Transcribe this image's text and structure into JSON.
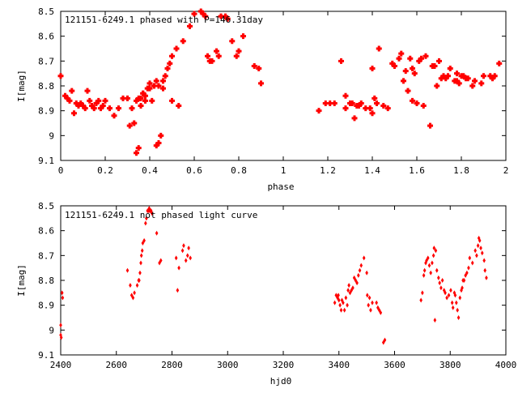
{
  "chart_data": [
    {
      "type": "scatter",
      "title": "121151-6249.1 phased with P=146.31day",
      "xlabel": "phase",
      "ylabel": "I[mag]",
      "xlim": [
        0,
        2
      ],
      "ylim": [
        8.5,
        9.1
      ],
      "y_inverted": true,
      "x_ticks": [
        "0",
        "0.2",
        "0.4",
        "0.6",
        "0.8",
        "1",
        "1.2",
        "1.4",
        "1.6",
        "1.8",
        "2"
      ],
      "y_ticks": [
        "8.5",
        "8.6",
        "8.7",
        "8.8",
        "8.9",
        "9",
        "9.1"
      ],
      "marker": "filled-cross",
      "color": "#ff0000",
      "series": [
        {
          "x": [
            0.0,
            0.02,
            0.03,
            0.04,
            0.05,
            0.06,
            0.07,
            0.08,
            0.09,
            0.1,
            0.11,
            0.12,
            0.13,
            0.14,
            0.15,
            0.16,
            0.17,
            0.18,
            0.19,
            0.2,
            0.22,
            0.24,
            0.26,
            0.28,
            0.3,
            0.31,
            0.32,
            0.33,
            0.34,
            0.34,
            0.35,
            0.35,
            0.36,
            0.36,
            0.37,
            0.37,
            0.38,
            0.38,
            0.39,
            0.4,
            0.4,
            0.41,
            0.42,
            0.43,
            0.43,
            0.44,
            0.44,
            0.45,
            0.46,
            0.46,
            0.47,
            0.48,
            0.49,
            0.5,
            0.5,
            0.52,
            0.53,
            0.55,
            0.58,
            0.6,
            0.63,
            0.64,
            0.65,
            0.66,
            0.67,
            0.68,
            0.7,
            0.71,
            0.72,
            0.74,
            0.75,
            0.77,
            0.79,
            0.8,
            0.82,
            0.87,
            0.89,
            0.9,
            1.16,
            1.19,
            1.21,
            1.23,
            1.26,
            1.28,
            1.28,
            1.3,
            1.31,
            1.32,
            1.33,
            1.34,
            1.35,
            1.37,
            1.39,
            1.4,
            1.4,
            1.41,
            1.42,
            1.43,
            1.45,
            1.47,
            1.49,
            1.5,
            1.52,
            1.53,
            1.54,
            1.55,
            1.56,
            1.57,
            1.58,
            1.58,
            1.59,
            1.6,
            1.61,
            1.62,
            1.63,
            1.64,
            1.66,
            1.67,
            1.68,
            1.69,
            1.7,
            1.71,
            1.72,
            1.73,
            1.74,
            1.75,
            1.77,
            1.78,
            1.78,
            1.79,
            1.8,
            1.81,
            1.82,
            1.83,
            1.85,
            1.86,
            1.89,
            1.9,
            1.93,
            1.94,
            1.95,
            1.97
          ],
          "y": [
            8.76,
            8.84,
            8.85,
            8.86,
            8.82,
            8.91,
            8.87,
            8.88,
            8.87,
            8.88,
            8.89,
            8.82,
            8.86,
            8.88,
            8.89,
            8.87,
            8.86,
            8.89,
            8.88,
            8.86,
            8.89,
            8.92,
            8.89,
            8.85,
            8.85,
            8.96,
            8.89,
            8.95,
            9.07,
            8.86,
            8.85,
            9.05,
            8.88,
            8.85,
            8.83,
            8.83,
            8.86,
            8.84,
            8.81,
            8.81,
            8.79,
            8.86,
            8.8,
            9.04,
            8.78,
            9.03,
            8.8,
            9.0,
            8.81,
            8.78,
            8.76,
            8.73,
            8.71,
            8.68,
            8.86,
            8.65,
            8.88,
            8.62,
            8.56,
            8.51,
            8.5,
            8.51,
            8.52,
            8.68,
            8.7,
            8.7,
            8.66,
            8.68,
            8.52,
            8.52,
            8.53,
            8.62,
            8.68,
            8.66,
            8.6,
            8.72,
            8.73,
            8.79,
            8.9,
            8.87,
            8.87,
            8.87,
            8.7,
            8.84,
            8.89,
            8.87,
            8.87,
            8.93,
            8.88,
            8.88,
            8.87,
            8.89,
            8.89,
            8.91,
            8.73,
            8.85,
            8.87,
            8.65,
            8.88,
            8.89,
            8.71,
            8.72,
            8.69,
            8.67,
            8.78,
            8.74,
            8.82,
            8.69,
            8.86,
            8.73,
            8.75,
            8.87,
            8.7,
            8.69,
            8.88,
            8.68,
            8.96,
            8.72,
            8.72,
            8.8,
            8.7,
            8.77,
            8.76,
            8.77,
            8.76,
            8.73,
            8.78,
            8.75,
            8.78,
            8.79,
            8.76,
            8.76,
            8.77,
            8.77,
            8.8,
            8.78,
            8.79,
            8.76,
            8.76,
            8.77,
            8.76,
            8.71
          ]
        }
      ]
    },
    {
      "type": "scatter",
      "title": "121151-6249.1 not phased light curve",
      "xlabel": "hjd0",
      "ylabel": "I[mag]",
      "xlim": [
        2400,
        4000
      ],
      "ylim": [
        8.5,
        9.1
      ],
      "y_inverted": true,
      "x_ticks": [
        "2400",
        "2600",
        "2800",
        "3000",
        "3200",
        "3400",
        "3600",
        "3800",
        "4000"
      ],
      "y_ticks": [
        "8.5",
        "8.6",
        "8.7",
        "8.8",
        "8.9",
        "9",
        "9.1"
      ],
      "marker": "small-diamond",
      "color": "#ff0000",
      "series": [
        {
          "x": [
            2400,
            2400,
            2402,
            2405,
            2407,
            2640,
            2650,
            2655,
            2660,
            2665,
            2675,
            2680,
            2682,
            2685,
            2688,
            2690,
            2693,
            2695,
            2700,
            2705,
            2708,
            2712,
            2715,
            2718,
            2720,
            2723,
            2725,
            2728,
            2745,
            2755,
            2760,
            2815,
            2820,
            2825,
            2838,
            2842,
            2850,
            2856,
            2860,
            2866,
            3385,
            3390,
            3395,
            3398,
            3400,
            3404,
            3408,
            3411,
            3415,
            3420,
            3425,
            3430,
            3433,
            3436,
            3440,
            3445,
            3450,
            3455,
            3460,
            3465,
            3470,
            3475,
            3480,
            3490,
            3500,
            3502,
            3506,
            3510,
            3514,
            3520,
            3535,
            3540,
            3545,
            3550,
            3560,
            3565,
            3695,
            3700,
            3705,
            3708,
            3712,
            3715,
            3720,
            3725,
            3730,
            3735,
            3740,
            3742,
            3745,
            3748,
            3752,
            3758,
            3762,
            3767,
            3772,
            3778,
            3782,
            3788,
            3795,
            3802,
            3807,
            3810,
            3815,
            3818,
            3822,
            3826,
            3830,
            3835,
            3840,
            3843,
            3846,
            3850,
            3855,
            3860,
            3866,
            3870,
            3880,
            3890,
            3895,
            3900,
            3903,
            3906,
            3910,
            3915,
            3922,
            3925,
            3930
          ],
          "y": [
            8.98,
            9.02,
            9.03,
            8.85,
            8.87,
            8.76,
            8.82,
            8.86,
            8.87,
            8.85,
            8.82,
            8.8,
            8.8,
            8.77,
            8.73,
            8.7,
            8.68,
            8.65,
            8.64,
            8.57,
            8.55,
            8.52,
            8.52,
            8.51,
            8.52,
            8.52,
            8.52,
            8.53,
            8.61,
            8.73,
            8.72,
            8.71,
            8.84,
            8.75,
            8.68,
            8.66,
            8.72,
            8.7,
            8.67,
            8.71,
            8.89,
            8.86,
            8.87,
            8.86,
            8.88,
            8.9,
            8.92,
            8.88,
            8.89,
            8.92,
            8.87,
            8.9,
            8.84,
            8.82,
            8.85,
            8.84,
            8.83,
            8.79,
            8.8,
            8.81,
            8.78,
            8.76,
            8.74,
            8.71,
            8.77,
            8.86,
            8.9,
            8.87,
            8.92,
            8.89,
            8.89,
            8.91,
            8.92,
            8.93,
            9.05,
            9.04,
            8.88,
            8.85,
            8.78,
            8.76,
            8.73,
            8.72,
            8.71,
            8.74,
            8.77,
            8.73,
            8.7,
            8.67,
            8.96,
            8.68,
            8.76,
            8.79,
            8.81,
            8.83,
            8.8,
            8.84,
            8.85,
            8.87,
            8.86,
            8.84,
            8.89,
            8.91,
            8.85,
            8.86,
            8.89,
            8.92,
            8.95,
            8.87,
            8.84,
            8.83,
            8.8,
            8.8,
            8.78,
            8.77,
            8.75,
            8.71,
            8.73,
            8.68,
            8.7,
            8.66,
            8.63,
            8.64,
            8.67,
            8.69,
            8.72,
            8.76,
            8.79
          ]
        }
      ]
    }
  ]
}
